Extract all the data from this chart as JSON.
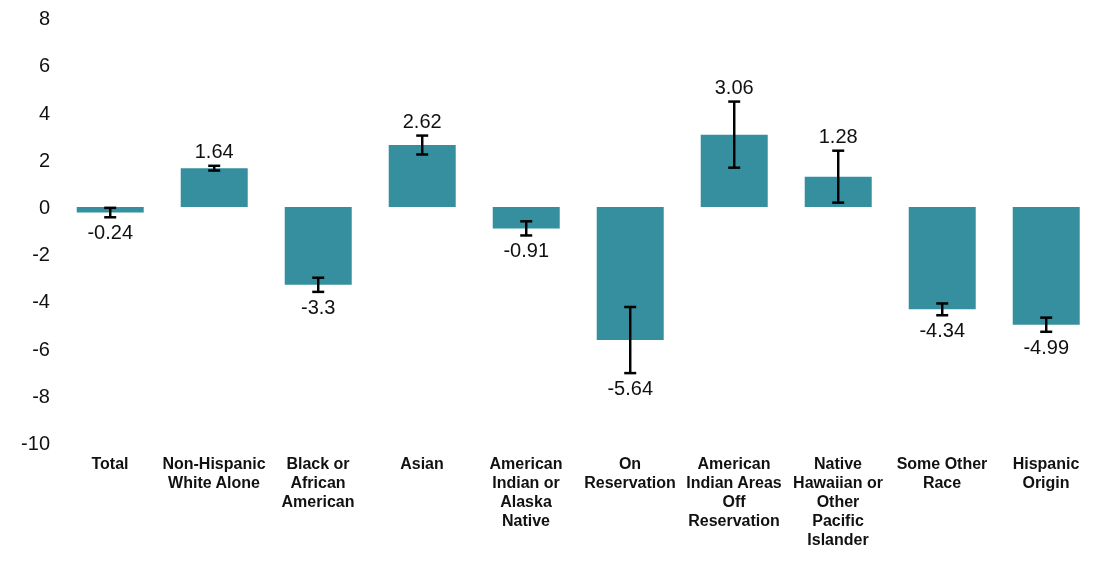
{
  "chart_data": {
    "type": "bar",
    "categories": [
      "Total",
      "Non-Hispanic White Alone",
      "Black or African American",
      "Asian",
      "American Indian or Alaska Native",
      "On Reservation",
      "American Indian Areas Off Reservation",
      "Native Hawaiian or Other Pacific Islander",
      "Some Other Race",
      "Hispanic Origin"
    ],
    "values": [
      -0.24,
      1.64,
      -3.3,
      2.62,
      -0.91,
      -5.64,
      3.06,
      1.28,
      -4.34,
      -4.99
    ],
    "errors": [
      0.2,
      0.1,
      0.3,
      0.4,
      0.3,
      1.4,
      1.4,
      1.1,
      0.25,
      0.3
    ],
    "color": "#358f9f",
    "data_labels": true,
    "grid": false,
    "legend": false,
    "ylim": [
      -10,
      8
    ],
    "yticks": [
      -10,
      -8,
      -6,
      -4,
      -2,
      0,
      2,
      4,
      6,
      8
    ]
  }
}
